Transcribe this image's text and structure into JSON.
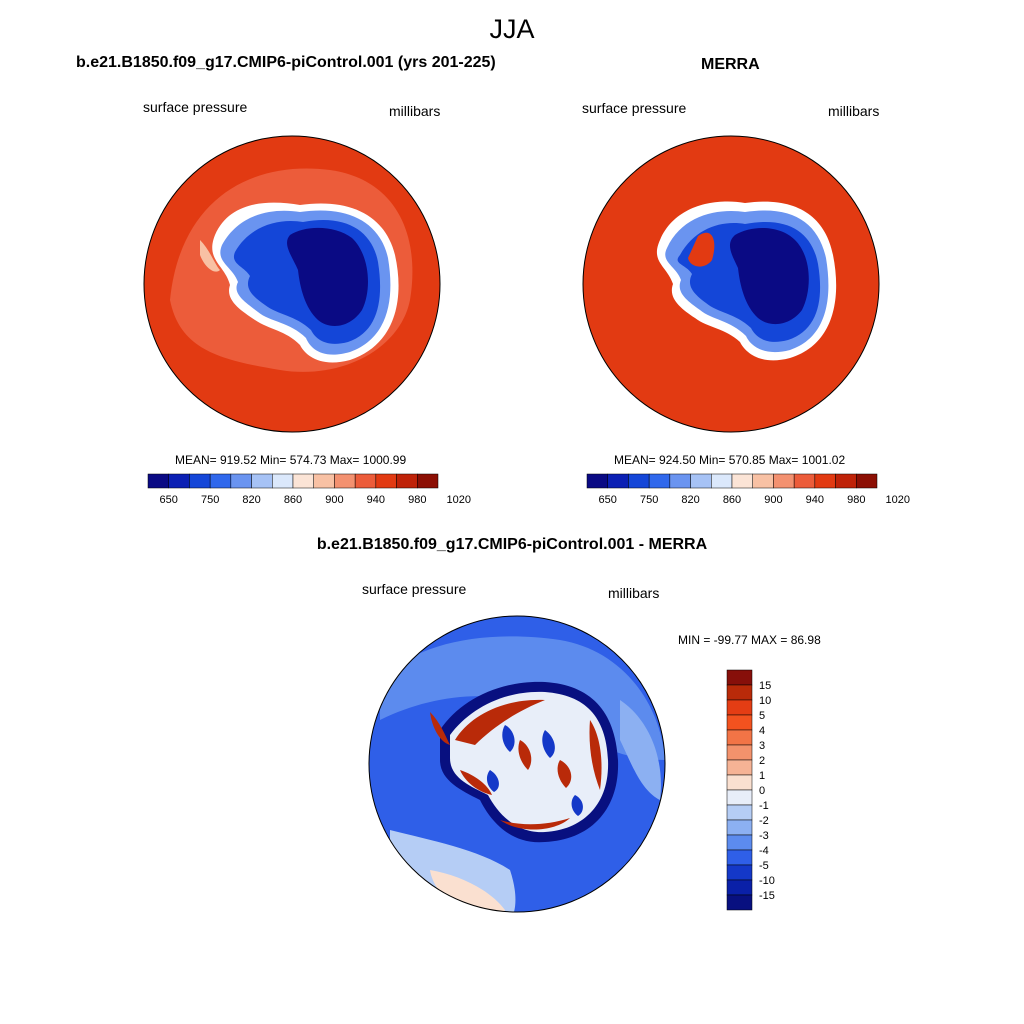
{
  "season": "JJA",
  "panels": [
    {
      "title": "b.e21.B1850.f09_g17.CMIP6-piControl.001 (yrs 201-225)",
      "variable": "surface pressure",
      "units": "millibars",
      "stats": "MEAN= 919.52  Min= 574.73  Max= 1000.99"
    },
    {
      "title": "MERRA",
      "variable": "surface pressure",
      "units": "millibars",
      "stats": "MEAN= 924.50  Min= 570.85  Max= 1001.02"
    },
    {
      "title": "b.e21.B1850.f09_g17.CMIP6-piControl.001 - MERRA",
      "variable": "surface pressure",
      "units": "millibars",
      "stats": "MIN = -99.77 MAX =  86.98"
    }
  ],
  "abs_colorbar": {
    "tick_labels": [
      "650",
      "750",
      "820",
      "860",
      "900",
      "940",
      "980",
      "1020"
    ],
    "colors": [
      "#0a0a84",
      "#0b20b4",
      "#1446d8",
      "#3068ec",
      "#6a94f0",
      "#a6c2f5",
      "#dbe8fb",
      "#fbe4d6",
      "#f8c1a4",
      "#f39170",
      "#ec5c3a",
      "#e23a12",
      "#bf2208",
      "#8c0f04"
    ]
  },
  "diff_colorbar": {
    "tick_labels": [
      "15",
      "10",
      "5",
      "4",
      "3",
      "2",
      "1",
      "0",
      "-1",
      "-2",
      "-3",
      "-4",
      "-5",
      "-10",
      "-15"
    ],
    "colors": [
      "#870f0a",
      "#b92a09",
      "#e43d14",
      "#f2521f",
      "#f27446",
      "#f3926c",
      "#f6b395",
      "#fae0d0",
      "#e8eef9",
      "#b5cdf5",
      "#8cb0f2",
      "#5c8bee",
      "#2f5fe8",
      "#1438c8",
      "#0a20a8",
      "#081080"
    ]
  }
}
